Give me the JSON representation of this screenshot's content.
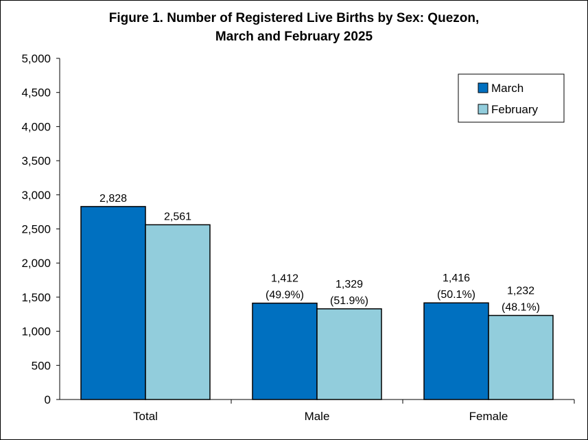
{
  "chart_data": {
    "type": "bar",
    "title_line1": "Figure 1. Number of Registered Live Births by Sex: Quezon,",
    "title_line2": "March and February 2025",
    "categories": [
      "Total",
      "Male",
      "Female"
    ],
    "series": [
      {
        "name": "March",
        "color": "#0070C0",
        "values": [
          2828,
          1412,
          1416
        ],
        "labels": [
          "2,828",
          "1,412",
          "1,416"
        ],
        "sublabels": [
          "",
          "(49.9%)",
          "(50.1%)"
        ]
      },
      {
        "name": "February",
        "color": "#92CDDC",
        "values": [
          2561,
          1329,
          1232
        ],
        "labels": [
          "2,561",
          "1,329",
          "1,232"
        ],
        "sublabels": [
          "",
          "(51.9%)",
          "(48.1%)"
        ]
      }
    ],
    "ylim": [
      0,
      5000
    ],
    "yticks": [
      0,
      500,
      1000,
      1500,
      2000,
      2500,
      3000,
      3500,
      4000,
      4500,
      5000
    ],
    "ytick_labels": [
      "0",
      "500",
      "1,000",
      "1,500",
      "2,000",
      "2,500",
      "3,000",
      "3,500",
      "4,000",
      "4,500",
      "5,000"
    ],
    "grid": false,
    "legend_position": "top-right"
  }
}
